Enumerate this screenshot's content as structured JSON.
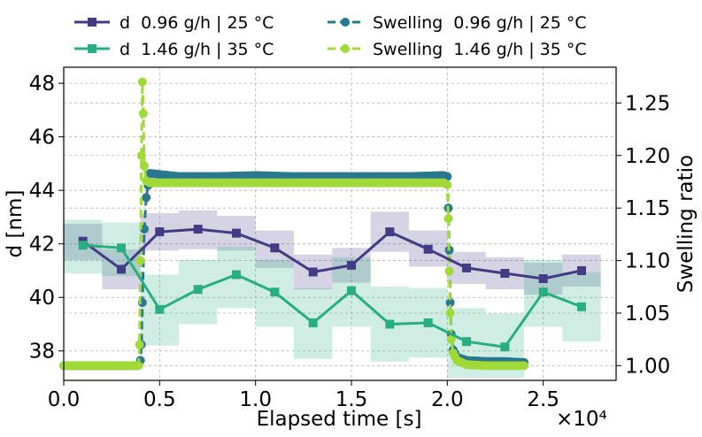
{
  "chart_data": {
    "type": "line",
    "xlabel": "Elapsed time [s]",
    "x_offset_label": "×10⁴",
    "ylabel_left": "d [nm]",
    "ylabel_right": "Swelling ratio",
    "xlim": [
      0,
      28800
    ],
    "ylim_left": [
      36.9,
      48.6
    ],
    "ylim_right": [
      0.986,
      1.284
    ],
    "x_ticks": [
      0,
      5000,
      10000,
      15000,
      20000,
      25000
    ],
    "x_tick_labels": [
      "0.0",
      "0.5",
      "1.0",
      "1.5",
      "2.0",
      "2.5"
    ],
    "y_left_ticks": [
      38,
      40,
      42,
      44,
      46,
      48
    ],
    "y_left_tick_labels": [
      "38",
      "40",
      "42",
      "44",
      "46",
      "48"
    ],
    "y_right_ticks": [
      1.0,
      1.05,
      1.1,
      1.15,
      1.2,
      1.25
    ],
    "y_right_tick_labels": [
      "1.00",
      "1.05",
      "1.10",
      "1.15",
      "1.20",
      "1.25"
    ],
    "grid": true,
    "legend_position": "top, outside plot, 2 columns",
    "series": [
      {
        "name": "d  0.96 g/h | 25 °C",
        "axis": "left",
        "color": "#433c84",
        "marker": "square",
        "x": [
          1000,
          3000,
          5000,
          7000,
          9000,
          11000,
          13000,
          15000,
          17000,
          19000,
          21000,
          23000,
          25000,
          27000
        ],
        "y": [
          42.1,
          41.05,
          42.45,
          42.55,
          42.4,
          41.85,
          40.95,
          41.2,
          42.45,
          41.8,
          41.1,
          40.9,
          40.7,
          41.0
        ],
        "band_low": [
          41.4,
          40.3,
          41.75,
          41.8,
          41.75,
          41.1,
          40.3,
          40.55,
          41.7,
          41.15,
          40.5,
          40.3,
          40.1,
          40.4
        ],
        "band_high": [
          42.75,
          41.8,
          43.15,
          43.25,
          43.05,
          42.5,
          41.6,
          41.85,
          43.2,
          42.5,
          41.7,
          41.5,
          41.3,
          41.6
        ]
      },
      {
        "name": "d  1.46 g/h | 35 °C",
        "axis": "left",
        "color": "#28ae80",
        "marker": "square",
        "x": [
          1000,
          3000,
          5000,
          7000,
          9000,
          11000,
          13000,
          15000,
          17000,
          19000,
          21000,
          23000,
          25000,
          27000
        ],
        "y": [
          41.95,
          41.85,
          39.55,
          40.3,
          40.85,
          40.2,
          39.05,
          40.25,
          39.0,
          39.05,
          38.35,
          38.15,
          40.2,
          39.65
        ],
        "band_low": [
          40.9,
          40.8,
          38.2,
          39.0,
          39.6,
          38.9,
          37.7,
          38.9,
          37.6,
          37.75,
          37.0,
          37.0,
          38.9,
          38.35
        ],
        "band_high": [
          42.9,
          42.8,
          40.85,
          41.4,
          41.9,
          41.4,
          40.35,
          41.5,
          40.4,
          40.35,
          39.6,
          39.4,
          41.4,
          40.95
        ]
      },
      {
        "name": "Swelling  0.96 g/h | 25 °C",
        "axis": "right",
        "color": "#2a788e",
        "marker": "circle",
        "linestyle": "dashed",
        "x": [
          0,
          1000,
          2000,
          3000,
          3900,
          4000,
          4050,
          4100,
          4200,
          4300,
          4500,
          6000,
          8000,
          10000,
          12000,
          14000,
          16000,
          18000,
          19800,
          20000,
          20050,
          20100,
          20150,
          20200,
          20300,
          20500,
          21000,
          22000,
          23000,
          24000
        ],
        "y": [
          1.0,
          1.0,
          1.0,
          1.0,
          1.0,
          1.005,
          1.02,
          1.06,
          1.13,
          1.16,
          1.183,
          1.18,
          1.18,
          1.181,
          1.18,
          1.18,
          1.18,
          1.18,
          1.181,
          1.18,
          1.15,
          1.11,
          1.06,
          1.03,
          1.015,
          1.008,
          1.005,
          1.004,
          1.004,
          1.003
        ]
      },
      {
        "name": "Swelling  1.46 g/h | 35 °C",
        "axis": "right",
        "color": "#a0da39",
        "marker": "circle",
        "linestyle": "dashed",
        "x": [
          0,
          1000,
          2000,
          3000,
          3900,
          3950,
          4000,
          4050,
          4100,
          4150,
          4200,
          4300,
          4500,
          6000,
          8000,
          10000,
          12000,
          14000,
          16000,
          18000,
          19800,
          20000,
          20050,
          20100,
          20150,
          20200,
          20300,
          20500,
          21000,
          22000,
          23000,
          24000
        ],
        "y": [
          1.0,
          1.0,
          1.0,
          1.0,
          1.0,
          1.02,
          1.1,
          1.2,
          1.27,
          1.24,
          1.19,
          1.176,
          1.174,
          1.174,
          1.174,
          1.174,
          1.174,
          1.174,
          1.174,
          1.174,
          1.174,
          1.172,
          1.14,
          1.09,
          1.05,
          1.025,
          1.012,
          1.005,
          1.001,
          1.0,
          1.0,
          1.0
        ]
      }
    ]
  }
}
